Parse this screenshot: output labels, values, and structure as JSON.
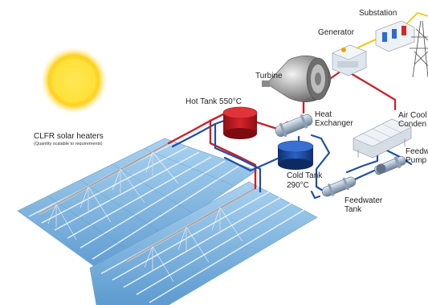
{
  "labels": {
    "substation": "Substation",
    "generator": "Generator",
    "turbine": "Turbine",
    "hot_tank": "Hot Tank 550°C",
    "heat_exchanger_1": "Heat",
    "heat_exchanger_2": "Exchanger",
    "air_cooled_1": "Air Cool",
    "air_cooled_2": "Conden",
    "clfr_title": "CLFR solar heaters",
    "clfr_sub": "(Quantity scalable to requirements)",
    "feedwater_pump_1": "Feedw",
    "feedwater_pump_2": "Pump",
    "cold_tank_1": "Cold Tank",
    "cold_tank_2": "290°C",
    "feedwater_tank_1": "Feedwater",
    "feedwater_tank_2": "Tank"
  },
  "colors": {
    "hot_pipe": "#c8202c",
    "cold_pipe": "#1f4fa3",
    "steam_pipe": "#d8d8e8",
    "sun": "#ffd21f",
    "mirror": "#7fb6df",
    "hot_tank": "#c4161c",
    "cold_tank": "#1d4fae",
    "power_line": "#f2c200"
  }
}
